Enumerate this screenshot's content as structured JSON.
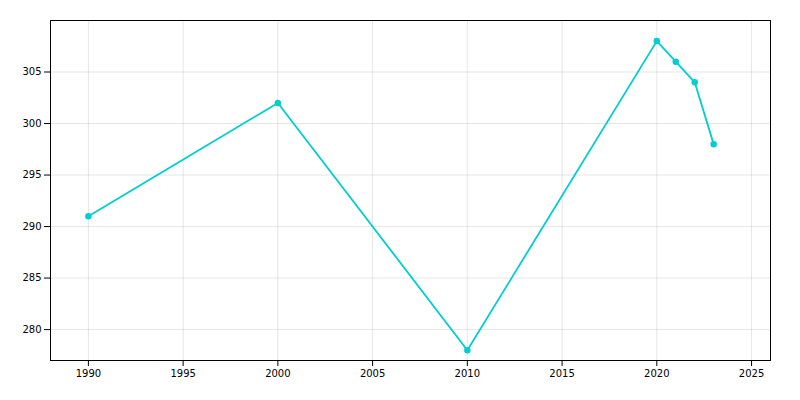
{
  "chart_data": {
    "type": "line",
    "x": [
      1990,
      2000,
      2010,
      2020,
      2021,
      2022,
      2023
    ],
    "values": [
      291,
      302,
      278,
      308,
      306,
      304,
      298
    ],
    "color": "#00CED1",
    "marker": "circle",
    "xlim": [
      1988,
      2026
    ],
    "ylim": [
      277,
      310
    ],
    "xticks": [
      1990,
      1995,
      2000,
      2005,
      2010,
      2015,
      2020,
      2025
    ],
    "yticks": [
      280,
      285,
      290,
      295,
      300,
      305
    ],
    "grid": true
  }
}
